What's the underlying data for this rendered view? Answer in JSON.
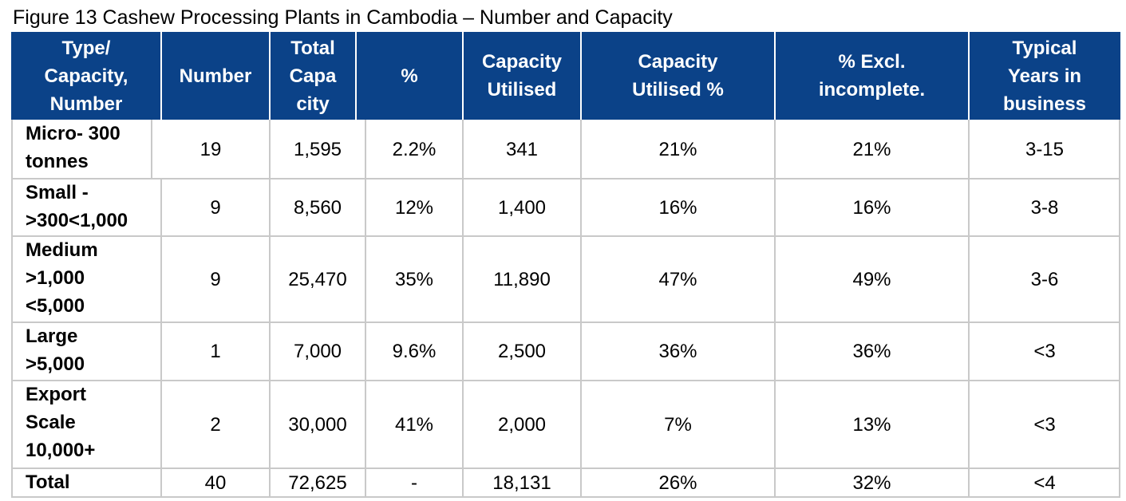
{
  "caption": "Figure 13 Cashew Processing Plants in Cambodia – Number and Capacity",
  "header": {
    "type": [
      "Type/",
      "Capacity,",
      "Number"
    ],
    "number": [
      "Number"
    ],
    "total_capacity": [
      "Total",
      "Capa",
      "city"
    ],
    "percent": [
      "%"
    ],
    "capacity_utilised": [
      "Capacity",
      "Utilised"
    ],
    "capacity_utilised_pct": [
      "Capacity",
      "Utilised %"
    ],
    "excl_incomplete": [
      "% Excl.",
      "incomplete."
    ],
    "typical_years": [
      "Typical",
      "Years in",
      "business"
    ]
  },
  "rows": [
    {
      "type": [
        "Micro- 300",
        "tonnes"
      ],
      "number": "19",
      "total_capacity": "1,595",
      "percent": "2.2%",
      "capacity_utilised": "341",
      "capacity_utilised_pct": "21%",
      "excl_incomplete": "21%",
      "typical_years": "3-15"
    },
    {
      "type": [
        "Small -",
        ">300<1,000"
      ],
      "number": "9",
      "total_capacity": "8,560",
      "percent": "12%",
      "capacity_utilised": "1,400",
      "capacity_utilised_pct": "16%",
      "excl_incomplete": "16%",
      "typical_years": "3-8"
    },
    {
      "type": [
        "Medium",
        ">1,000",
        "<5,000"
      ],
      "number": "9",
      "total_capacity": "25,470",
      "percent": "35%",
      "capacity_utilised": "11,890",
      "capacity_utilised_pct": "47%",
      "excl_incomplete": "49%",
      "typical_years": "3-6"
    },
    {
      "type": [
        "Large",
        ">5,000"
      ],
      "number": "1",
      "total_capacity": "7,000",
      "percent": "9.6%",
      "capacity_utilised": "2,500",
      "capacity_utilised_pct": "36%",
      "excl_incomplete": "36%",
      "typical_years": "<3"
    },
    {
      "type": [
        "Export",
        "Scale",
        "10,000+"
      ],
      "number": "2",
      "total_capacity": "30,000",
      "percent": "41%",
      "capacity_utilised": "2,000",
      "capacity_utilised_pct": "7%",
      "excl_incomplete": "13%",
      "typical_years": "<3"
    },
    {
      "type": [
        "Total"
      ],
      "number": "40",
      "total_capacity": "72,625",
      "percent": "-",
      "capacity_utilised": "18,131",
      "capacity_utilised_pct": "26%",
      "excl_incomplete": "32%",
      "typical_years": "<4"
    }
  ],
  "colors": {
    "header_bg": "#0b4288",
    "header_text": "#ffffff",
    "grid_line": "#c9c9c9"
  }
}
